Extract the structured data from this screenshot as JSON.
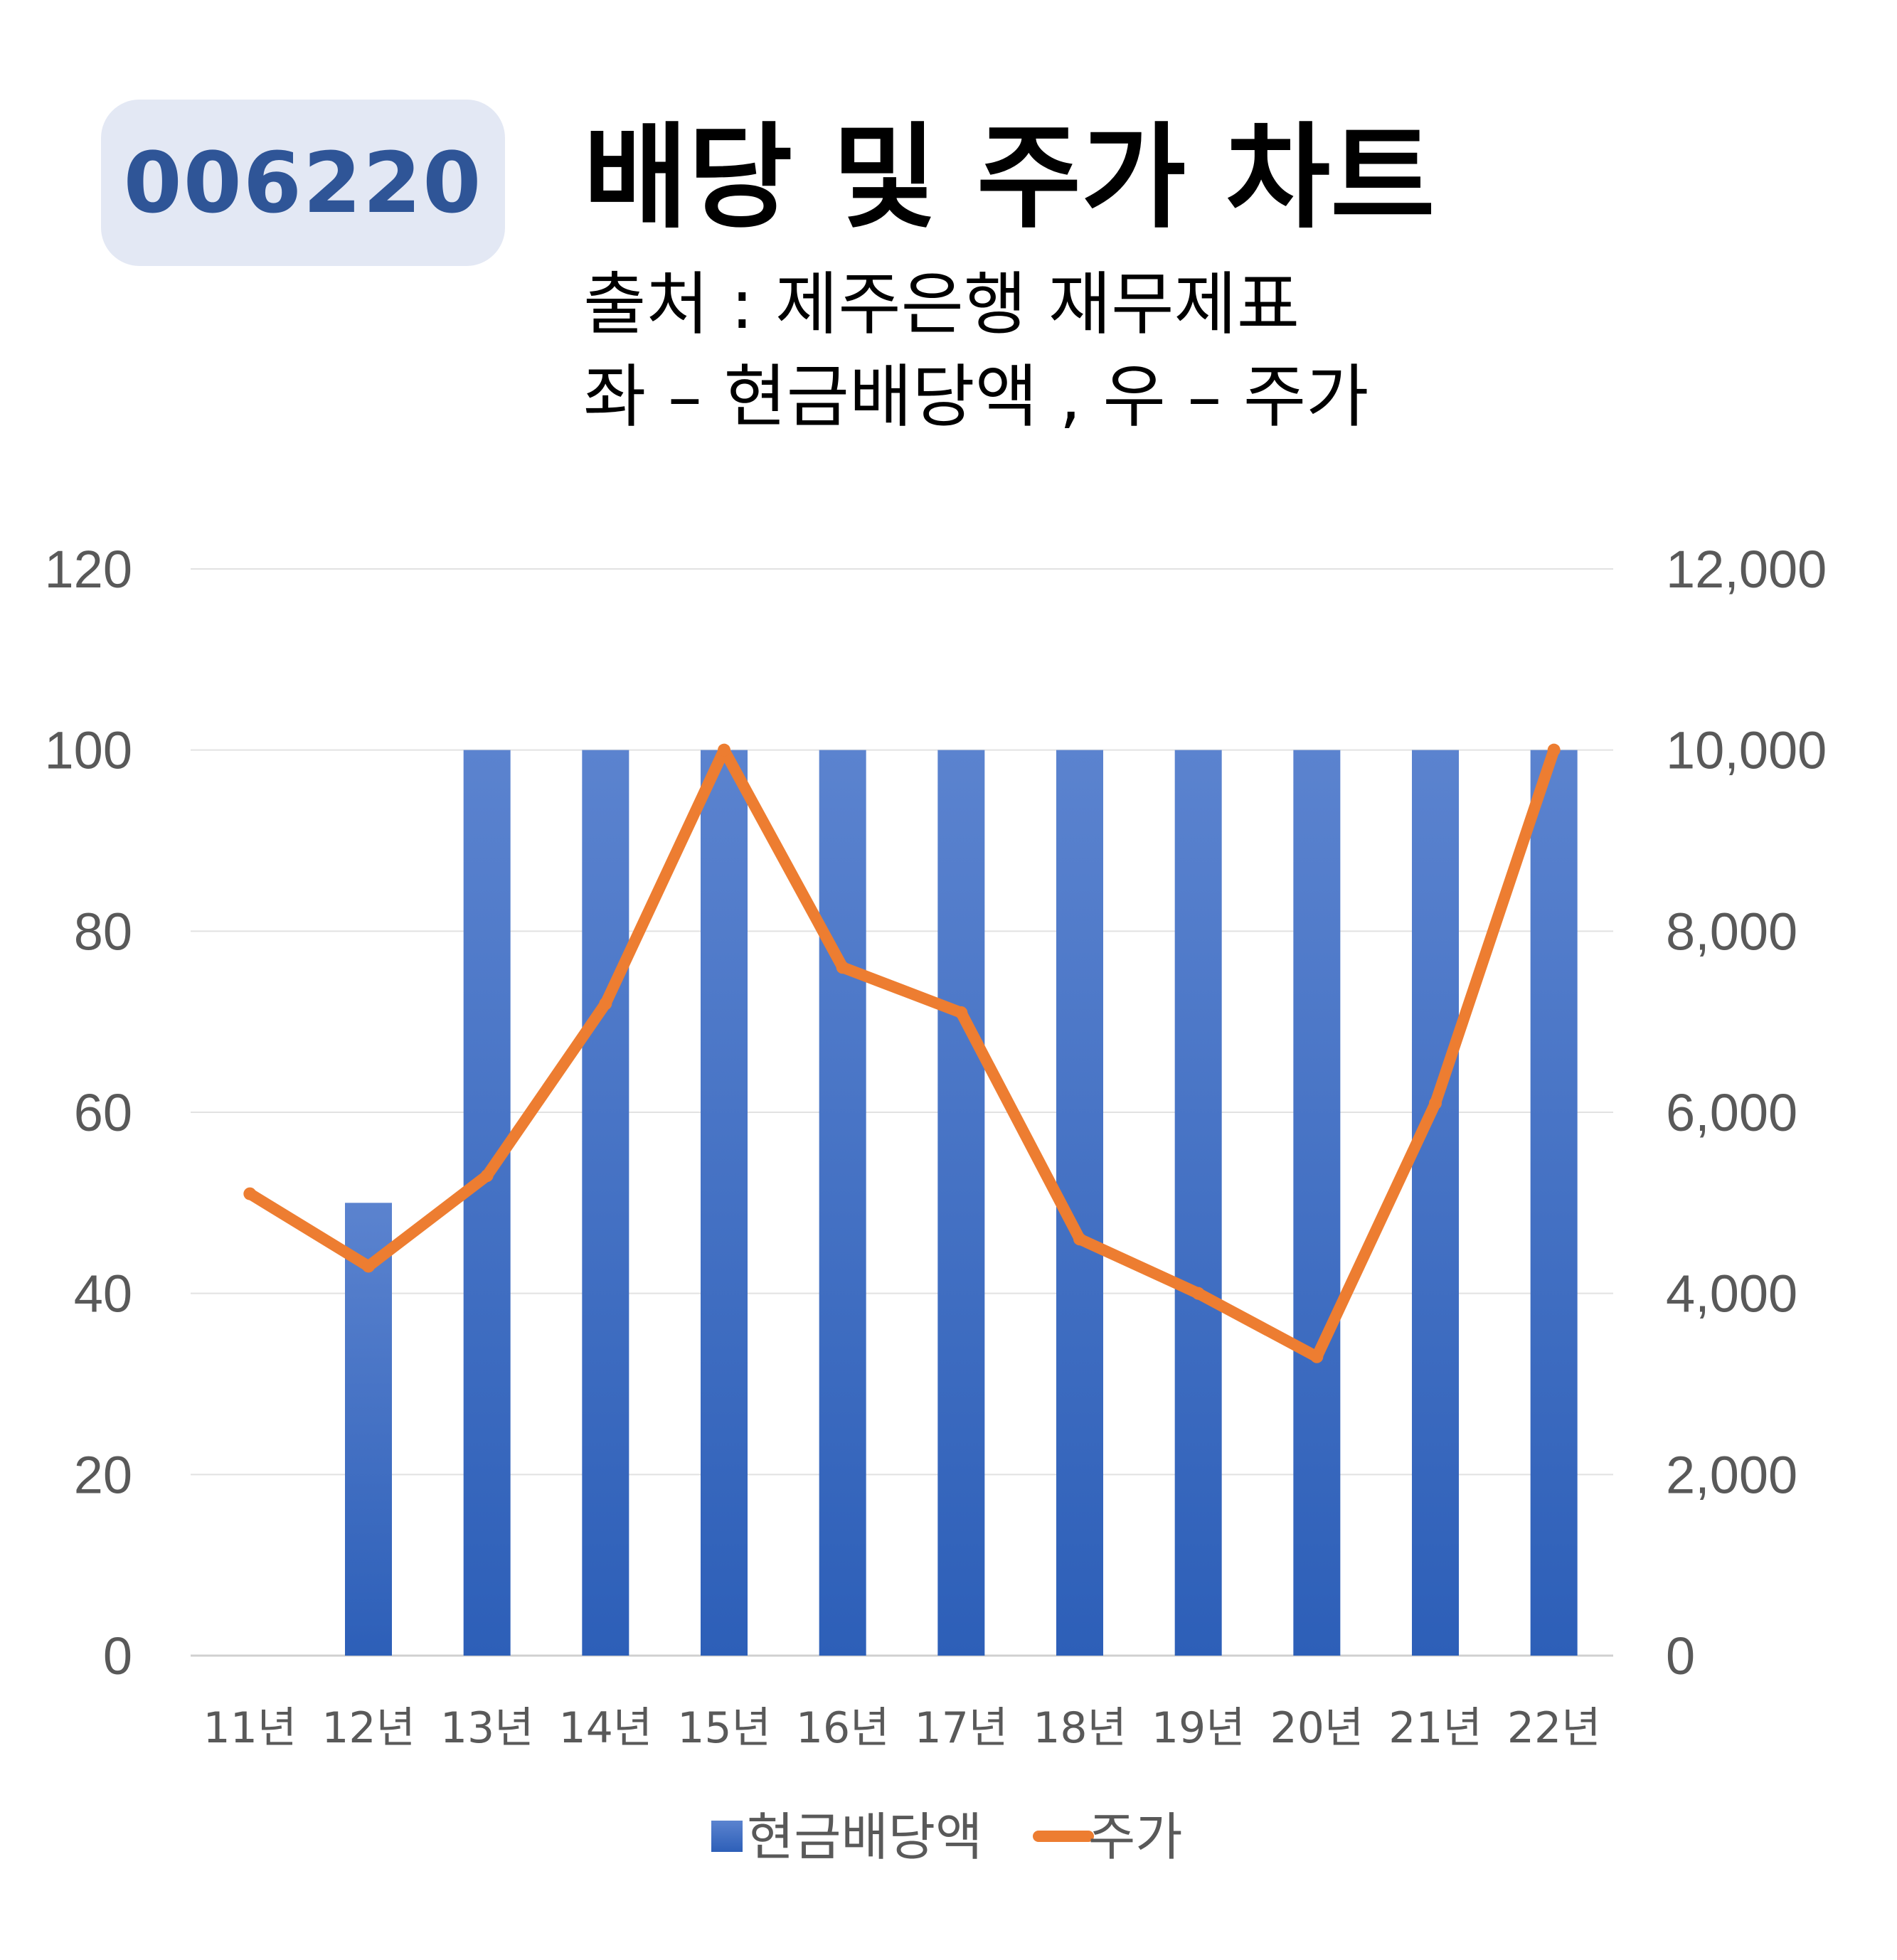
{
  "header": {
    "badge": "006220",
    "title": "배당 및 주가 차트",
    "subtitle_1": "출처 : 제주은행 재무제표",
    "subtitle_2": "좌 – 현금배당액  ,  우 – 주가"
  },
  "chart_data": {
    "type": "bar",
    "title": "배당 및 주가 차트",
    "categories": [
      "11년",
      "12년",
      "13년",
      "14년",
      "15년",
      "16년",
      "17년",
      "18년",
      "19년",
      "20년",
      "21년",
      "22년"
    ],
    "series": [
      {
        "name": "현금배당액",
        "type": "bar",
        "axis": "left",
        "color": "#4472c4",
        "values": [
          0,
          50,
          100,
          100,
          100,
          100,
          100,
          100,
          100,
          100,
          100,
          100
        ]
      },
      {
        "name": "주가",
        "type": "line",
        "axis": "right",
        "color": "#ed7d31",
        "values": [
          5100,
          4300,
          5300,
          7200,
          10000,
          7600,
          7100,
          4600,
          4000,
          3300,
          6100,
          10000
        ]
      }
    ],
    "y_left": {
      "ylim": [
        0,
        120
      ],
      "ticks": [
        "0",
        "20",
        "40",
        "60",
        "80",
        "100",
        "120"
      ]
    },
    "y_right": {
      "ylim": [
        0,
        12000
      ],
      "ticks": [
        "0",
        "2,000",
        "4,000",
        "6,000",
        "8,000",
        "10,000",
        "12,000"
      ]
    },
    "grid": true,
    "legend": "bottom"
  }
}
